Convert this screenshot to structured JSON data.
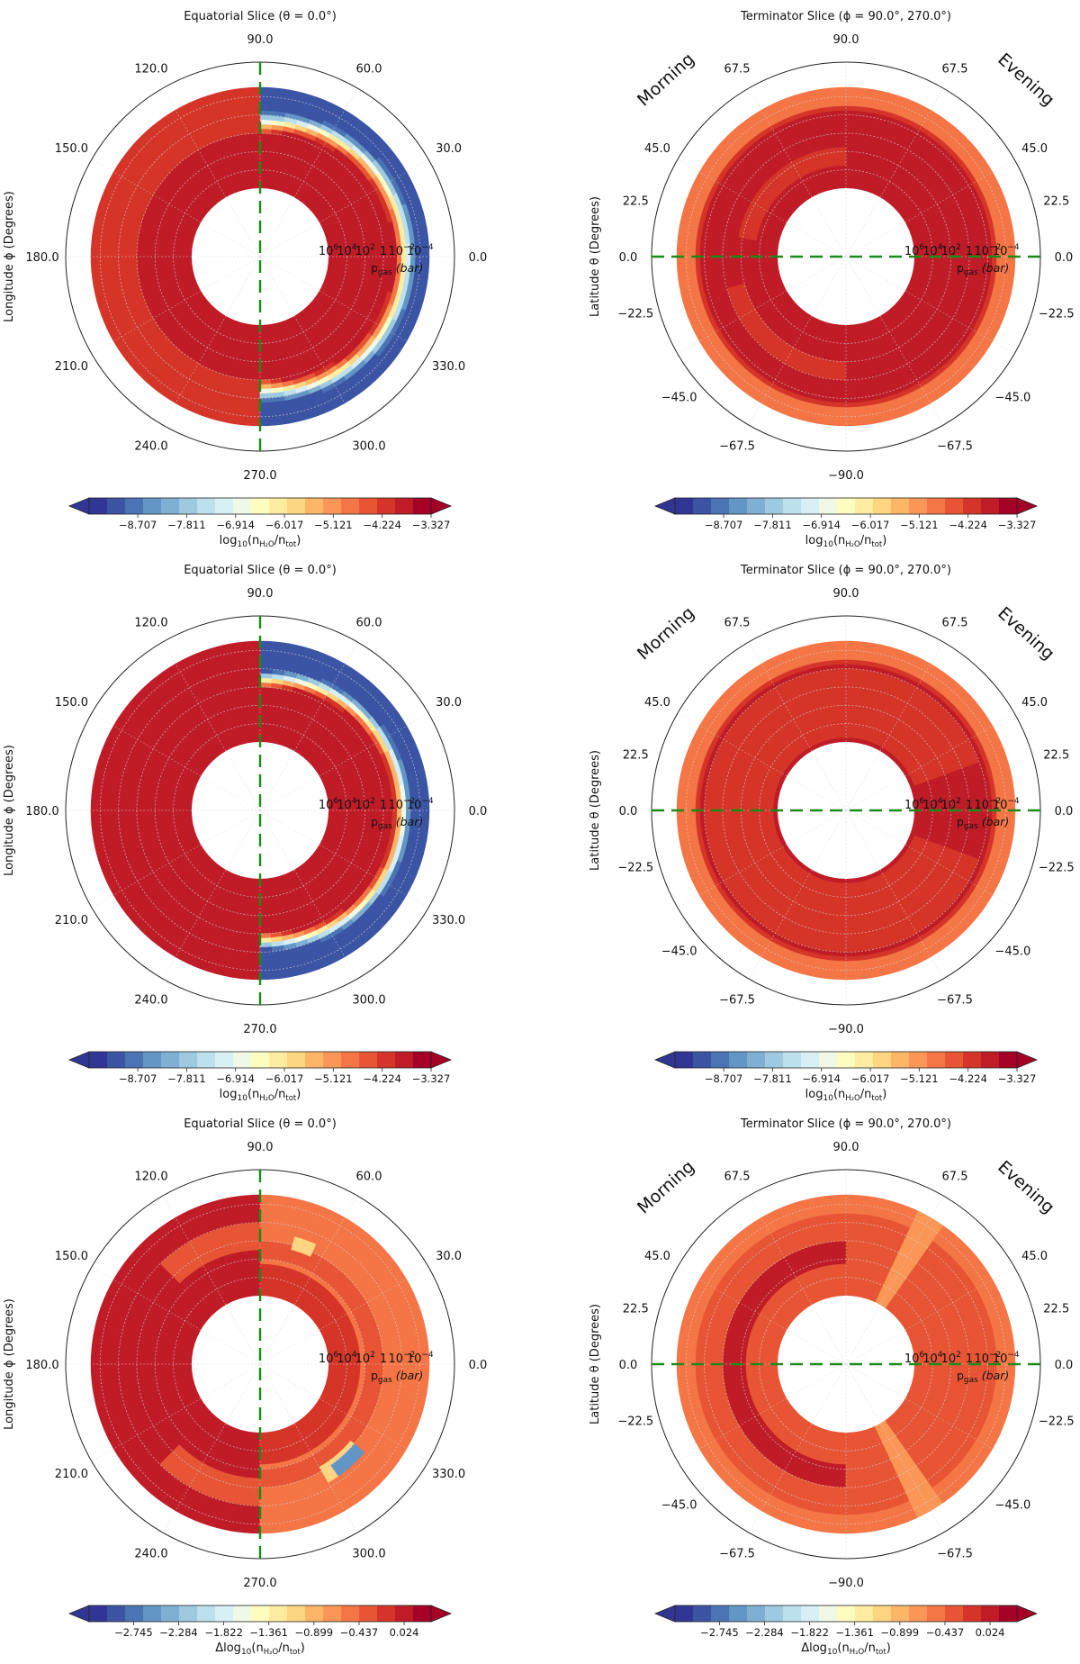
{
  "figure": {
    "description_panels": 6
  },
  "colors": {
    "ring_outline": "#222222",
    "grid": "#d8d8d8",
    "divider_line": "#1a8a1a",
    "hole": "#ffffff"
  },
  "colormap": [
    "#313695",
    "#3b54a4",
    "#4a74b4",
    "#6395c5",
    "#7fb0d3",
    "#9dcae1",
    "#bce0ec",
    "#d9eff6",
    "#f0f8e6",
    "#fffcc0",
    "#feeda0",
    "#fed580",
    "#fdb567",
    "#fa9656",
    "#f47545",
    "#e75535",
    "#d53528",
    "#bf1c27",
    "#a50026"
  ],
  "chart_data": [
    {
      "type": "polar-contour",
      "id": "p1",
      "title": "Equatorial Slice (θ = 0.0°)",
      "angular_label": "Longitude ϕ (Degrees)",
      "angular_ticks": [
        {
          "deg": 90,
          "label": "90.0"
        },
        {
          "deg": 60,
          "label": "60.0"
        },
        {
          "deg": 30,
          "label": "30.0"
        },
        {
          "deg": 0,
          "label": "0.0"
        },
        {
          "deg": 330,
          "label": "330.0"
        },
        {
          "deg": 300,
          "label": "300.0"
        },
        {
          "deg": 270,
          "label": "270.0"
        },
        {
          "deg": 240,
          "label": "240.0"
        },
        {
          "deg": 210,
          "label": "210.0"
        },
        {
          "deg": 180,
          "label": "180.0"
        },
        {
          "deg": 150,
          "label": "150.0"
        },
        {
          "deg": 120,
          "label": "120.0"
        }
      ],
      "radial_axis": {
        "label": "p_gas (bar)",
        "range_log10": [
          6,
          -5
        ],
        "ticks": [
          {
            "exp": "6",
            "label": "10",
            "value": 1000000.0
          },
          {
            "exp": "4",
            "label": "10",
            "value": 10000.0
          },
          {
            "exp": "2",
            "label": "10",
            "value": 100.0
          },
          {
            "exp": "",
            "label": "1",
            "value": 1
          },
          {
            "exp": "−2",
            "label": "10",
            "value": 0.01
          },
          {
            "exp": "−4",
            "label": "10",
            "value": 0.0001
          }
        ]
      },
      "divider": "vertical",
      "side_labels": null,
      "field": {
        "mode": "eq_a"
      },
      "colorbar": {
        "min": -9.6,
        "max": -3.327,
        "ticks": [
          "−8.707",
          "−7.811",
          "−6.914",
          "−6.017",
          "−5.121",
          "−4.224",
          "−3.327"
        ],
        "tick_values": [
          -8.707,
          -7.811,
          -6.914,
          -6.017,
          -5.121,
          -4.224,
          -3.327
        ],
        "label_prefix": "log",
        "label_sub": "10",
        "label_main": "(n",
        "label_species": "H₂O",
        "label_tail": "/n",
        "label_tot": "tot",
        ")": ")"
      }
    },
    {
      "type": "polar-contour",
      "id": "p2",
      "title": "Terminator Slice (ϕ = 90.0°, 270.0°)",
      "angular_label": "Latitude θ (Degrees)",
      "angular_ticks": [
        {
          "deg": 90,
          "label": "90.0"
        },
        {
          "deg": 60,
          "label": "67.5"
        },
        {
          "deg": 120,
          "label": "67.5"
        },
        {
          "deg": 30,
          "label": "45.0"
        },
        {
          "deg": 150,
          "label": "45.0"
        },
        {
          "deg": 15,
          "label": "22.5"
        },
        {
          "deg": 165,
          "label": "22.5"
        },
        {
          "deg": 0,
          "label": "0.0"
        },
        {
          "deg": 180,
          "label": "0.0"
        },
        {
          "deg": 345,
          "label": "−22.5"
        },
        {
          "deg": 195,
          "label": "−22.5"
        },
        {
          "deg": 320,
          "label": "−45.0"
        },
        {
          "deg": 220,
          "label": "−45.0"
        },
        {
          "deg": 300,
          "label": "−67.5"
        },
        {
          "deg": 240,
          "label": "−67.5"
        },
        {
          "deg": 270,
          "label": "−90.0"
        }
      ],
      "radial_axis": {
        "label": "p_gas (bar)",
        "range_log10": [
          6,
          -5
        ],
        "ticks": [
          {
            "exp": "6",
            "label": "10",
            "value": 1000000.0
          },
          {
            "exp": "4",
            "label": "10",
            "value": 10000.0
          },
          {
            "exp": "2",
            "label": "10",
            "value": 100.0
          },
          {
            "exp": "",
            "label": "1",
            "value": 1
          },
          {
            "exp": "−2",
            "label": "10",
            "value": 0.01
          },
          {
            "exp": "−4",
            "label": "10",
            "value": 0.0001
          }
        ]
      },
      "divider": "horizontal",
      "side_labels": {
        "left": "Morning",
        "right": "Evening"
      },
      "field": {
        "mode": "term_a"
      },
      "colorbar": {
        "min": -9.6,
        "max": -3.327,
        "ticks": [
          "−8.707",
          "−7.811",
          "−6.914",
          "−6.017",
          "−5.121",
          "−4.224",
          "−3.327"
        ],
        "tick_values": [
          -8.707,
          -7.811,
          -6.914,
          -6.017,
          -5.121,
          -4.224,
          -3.327
        ]
      }
    },
    {
      "type": "polar-contour",
      "id": "p3",
      "title": "Equatorial Slice (θ = 0.0°)",
      "angular_label": "Longitude ϕ (Degrees)",
      "angular_ticks": [
        {
          "deg": 90,
          "label": "90.0"
        },
        {
          "deg": 60,
          "label": "60.0"
        },
        {
          "deg": 30,
          "label": "30.0"
        },
        {
          "deg": 0,
          "label": "0.0"
        },
        {
          "deg": 330,
          "label": "330.0"
        },
        {
          "deg": 300,
          "label": "300.0"
        },
        {
          "deg": 270,
          "label": "270.0"
        },
        {
          "deg": 240,
          "label": "240.0"
        },
        {
          "deg": 210,
          "label": "210.0"
        },
        {
          "deg": 180,
          "label": "180.0"
        },
        {
          "deg": 150,
          "label": "150.0"
        },
        {
          "deg": 120,
          "label": "120.0"
        }
      ],
      "radial_axis": {
        "label": "p_gas (bar)",
        "range_log10": [
          6,
          -5
        ],
        "ticks": [
          {
            "exp": "6",
            "label": "10",
            "value": 1000000.0
          },
          {
            "exp": "4",
            "label": "10",
            "value": 10000.0
          },
          {
            "exp": "2",
            "label": "10",
            "value": 100.0
          },
          {
            "exp": "",
            "label": "1",
            "value": 1
          },
          {
            "exp": "−2",
            "label": "10",
            "value": 0.01
          },
          {
            "exp": "−4",
            "label": "10",
            "value": 0.0001
          }
        ]
      },
      "divider": "vertical",
      "side_labels": null,
      "field": {
        "mode": "eq_b"
      },
      "colorbar": {
        "min": -9.6,
        "max": -3.327,
        "ticks": [
          "−8.707",
          "−7.811",
          "−6.914",
          "−6.017",
          "−5.121",
          "−4.224",
          "−3.327"
        ],
        "tick_values": [
          -8.707,
          -7.811,
          -6.914,
          -6.017,
          -5.121,
          -4.224,
          -3.327
        ]
      }
    },
    {
      "type": "polar-contour",
      "id": "p4",
      "title": "Terminator Slice (ϕ = 90.0°, 270.0°)",
      "angular_label": "Latitude θ (Degrees)",
      "angular_ticks": [
        {
          "deg": 90,
          "label": "90.0"
        },
        {
          "deg": 60,
          "label": "67.5"
        },
        {
          "deg": 120,
          "label": "67.5"
        },
        {
          "deg": 30,
          "label": "45.0"
        },
        {
          "deg": 150,
          "label": "45.0"
        },
        {
          "deg": 15,
          "label": "22.5"
        },
        {
          "deg": 165,
          "label": "22.5"
        },
        {
          "deg": 0,
          "label": "0.0"
        },
        {
          "deg": 180,
          "label": "0.0"
        },
        {
          "deg": 345,
          "label": "−22.5"
        },
        {
          "deg": 195,
          "label": "−22.5"
        },
        {
          "deg": 320,
          "label": "−45.0"
        },
        {
          "deg": 220,
          "label": "−45.0"
        },
        {
          "deg": 300,
          "label": "−67.5"
        },
        {
          "deg": 240,
          "label": "−67.5"
        },
        {
          "deg": 270,
          "label": "−90.0"
        }
      ],
      "radial_axis": {
        "label": "p_gas (bar)",
        "range_log10": [
          6,
          -5
        ],
        "ticks": [
          {
            "exp": "6",
            "label": "10",
            "value": 1000000.0
          },
          {
            "exp": "4",
            "label": "10",
            "value": 10000.0
          },
          {
            "exp": "2",
            "label": "10",
            "value": 100.0
          },
          {
            "exp": "",
            "label": "1",
            "value": 1
          },
          {
            "exp": "−2",
            "label": "10",
            "value": 0.01
          },
          {
            "exp": "−4",
            "label": "10",
            "value": 0.0001
          }
        ]
      },
      "divider": "horizontal",
      "side_labels": {
        "left": "Morning",
        "right": "Evening"
      },
      "field": {
        "mode": "term_b"
      },
      "colorbar": {
        "min": -9.6,
        "max": -3.327,
        "ticks": [
          "−8.707",
          "−7.811",
          "−6.914",
          "−6.017",
          "−5.121",
          "−4.224",
          "−3.327"
        ],
        "tick_values": [
          -8.707,
          -7.811,
          -6.914,
          -6.017,
          -5.121,
          -4.224,
          -3.327
        ]
      }
    },
    {
      "type": "polar-contour",
      "id": "p5",
      "title": "Equatorial Slice (θ = 0.0°)",
      "angular_label": "Longitude ϕ (Degrees)",
      "angular_ticks": [
        {
          "deg": 90,
          "label": "90.0"
        },
        {
          "deg": 60,
          "label": "60.0"
        },
        {
          "deg": 30,
          "label": "30.0"
        },
        {
          "deg": 0,
          "label": "0.0"
        },
        {
          "deg": 330,
          "label": "330.0"
        },
        {
          "deg": 300,
          "label": "300.0"
        },
        {
          "deg": 270,
          "label": "270.0"
        },
        {
          "deg": 240,
          "label": "240.0"
        },
        {
          "deg": 210,
          "label": "210.0"
        },
        {
          "deg": 180,
          "label": "180.0"
        },
        {
          "deg": 150,
          "label": "150.0"
        },
        {
          "deg": 120,
          "label": "120.0"
        }
      ],
      "radial_axis": {
        "label": "p_gas (bar)",
        "range_log10": [
          6,
          -5
        ],
        "ticks": [
          {
            "exp": "6",
            "label": "10",
            "value": 1000000.0
          },
          {
            "exp": "4",
            "label": "10",
            "value": 10000.0
          },
          {
            "exp": "2",
            "label": "10",
            "value": 100.0
          },
          {
            "exp": "",
            "label": "1",
            "value": 1
          },
          {
            "exp": "−2",
            "label": "10",
            "value": 0.01
          },
          {
            "exp": "−4",
            "label": "10",
            "value": 0.0001
          }
        ]
      },
      "divider": "vertical",
      "side_labels": null,
      "field": {
        "mode": "eq_diff"
      },
      "colorbar": {
        "min": -3.2,
        "max": 0.3,
        "ticks": [
          "−2.745",
          "−2.284",
          "−1.822",
          "−1.361",
          "−0.899",
          "−0.437",
          "0.024"
        ],
        "tick_values": [
          -2.745,
          -2.284,
          -1.822,
          -1.361,
          -0.899,
          -0.437,
          0.024
        ],
        "delta": true
      }
    },
    {
      "type": "polar-contour",
      "id": "p6",
      "title": "Terminator Slice (ϕ = 90.0°, 270.0°)",
      "angular_label": "Latitude θ (Degrees)",
      "angular_ticks": [
        {
          "deg": 90,
          "label": "90.0"
        },
        {
          "deg": 60,
          "label": "67.5"
        },
        {
          "deg": 120,
          "label": "67.5"
        },
        {
          "deg": 30,
          "label": "45.0"
        },
        {
          "deg": 150,
          "label": "45.0"
        },
        {
          "deg": 15,
          "label": "22.5"
        },
        {
          "deg": 165,
          "label": "22.5"
        },
        {
          "deg": 0,
          "label": "0.0"
        },
        {
          "deg": 180,
          "label": "0.0"
        },
        {
          "deg": 345,
          "label": "−22.5"
        },
        {
          "deg": 195,
          "label": "−22.5"
        },
        {
          "deg": 320,
          "label": "−45.0"
        },
        {
          "deg": 220,
          "label": "−45.0"
        },
        {
          "deg": 300,
          "label": "−67.5"
        },
        {
          "deg": 240,
          "label": "−67.5"
        },
        {
          "deg": 270,
          "label": "−90.0"
        }
      ],
      "radial_axis": {
        "label": "p_gas (bar)",
        "range_log10": [
          6,
          -5
        ],
        "ticks": [
          {
            "exp": "6",
            "label": "10",
            "value": 1000000.0
          },
          {
            "exp": "4",
            "label": "10",
            "value": 10000.0
          },
          {
            "exp": "2",
            "label": "10",
            "value": 100.0
          },
          {
            "exp": "",
            "label": "1",
            "value": 1
          },
          {
            "exp": "−2",
            "label": "10",
            "value": 0.01
          },
          {
            "exp": "−4",
            "label": "10",
            "value": 0.0001
          }
        ]
      },
      "divider": "horizontal",
      "side_labels": {
        "left": "Morning",
        "right": "Evening"
      },
      "field": {
        "mode": "term_diff"
      },
      "colorbar": {
        "min": -3.2,
        "max": 0.3,
        "ticks": [
          "−2.745",
          "−2.284",
          "−1.822",
          "−1.361",
          "−0.899",
          "−0.437",
          "0.024"
        ],
        "tick_values": [
          -2.745,
          -2.284,
          -1.822,
          -1.361,
          -0.899,
          -0.437,
          0.024
        ],
        "delta": true
      }
    }
  ]
}
